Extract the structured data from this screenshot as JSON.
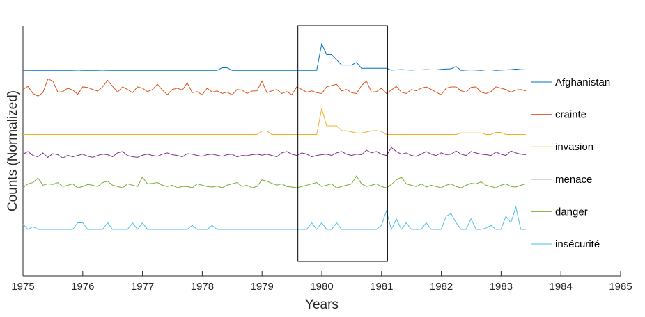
{
  "chart_data": {
    "type": "line",
    "title": "",
    "xlabel": "Years",
    "ylabel": "Counts (Normalized)",
    "xlim": [
      1975,
      1985
    ],
    "xticks": [
      "1975",
      "1976",
      "1977",
      "1978",
      "1979",
      "1980",
      "1981",
      "1982",
      "1983",
      "1984",
      "1985"
    ],
    "yticks_visible": false,
    "grid": false,
    "legend": "right, inline with each series",
    "highlight_box": {
      "x_start": 1979.6,
      "x_end": 1981.1,
      "stroke": "#000000"
    },
    "x_start": 1975.0,
    "x_step": 0.0833,
    "series": [
      {
        "name": "Afghanistan",
        "color": "#0072BD",
        "offset": 0.4,
        "values": [
          0.0,
          0.0,
          0.0,
          0.0,
          0.0,
          0.0,
          0.0,
          0.0,
          0.0,
          0.0,
          0.0,
          0.01,
          0.0,
          0.0,
          0.0,
          0.0,
          0.01,
          0.0,
          0.0,
          0.0,
          0.0,
          0.0,
          0.0,
          0.0,
          0.0,
          0.0,
          0.0,
          0.0,
          0.0,
          0.0,
          0.0,
          0.0,
          0.0,
          0.0,
          0.0,
          0.0,
          0.0,
          0.0,
          0.0,
          0.0,
          0.0,
          0.0,
          0.0,
          0.0,
          0.0,
          0.0,
          0.0,
          0.0,
          0.0,
          0.0,
          0.0,
          0.0,
          0.0,
          0.0,
          0.0,
          0.0,
          0.0,
          0.0,
          0.0,
          0.0,
          0.0,
          0.0,
          0.0,
          0.0,
          0.0,
          0.0,
          0.0,
          0.0,
          0.0,
          0.0,
          0.0,
          0.0,
          0.0,
          0.0,
          0.01,
          0.02,
          0.03,
          0.02,
          0.01,
          0.02,
          0.02,
          0.03,
          0.02,
          0.02,
          0.04,
          0.05,
          0.06,
          0.15,
          0.0,
          0.01,
          0.02,
          0.01,
          0.0,
          0.02,
          0.02,
          0.0,
          0.01,
          0.02,
          0.03,
          0.05,
          0.03,
          0.02,
          0.04,
          0.06,
          0.1,
          0.05,
          0.03,
          0.04,
          0.05,
          0.08,
          0.04,
          0.03,
          0.03,
          0.05,
          0.04,
          0.04,
          0.03,
          0.04,
          0.06,
          0.05,
          0.04,
          0.03,
          0.04,
          0.04,
          0.05,
          0.04,
          0.03,
          0.06,
          0.08,
          0.05,
          0.03,
          0.05,
          0.04,
          0.03,
          0.05,
          0.04,
          0.04,
          0.05,
          0.04,
          0.05,
          0.06,
          0.05,
          0.04,
          0.04,
          0.03,
          0.04,
          0.04,
          0.03,
          0.04,
          0.03,
          0.04,
          0.04
        ]
      },
      {
        "name": "crainte",
        "color": "#D95319",
        "offset": 0.4,
        "values": [
          0.5,
          0.62,
          0.35,
          0.25,
          0.38,
          0.9,
          0.82,
          0.4,
          0.42,
          0.55,
          0.48,
          0.32,
          0.6,
          0.58,
          0.5,
          0.44,
          0.6,
          0.85,
          0.62,
          0.4,
          0.6,
          0.5,
          0.38,
          0.6,
          0.55,
          0.42,
          0.5,
          0.7,
          0.48,
          0.3,
          0.5,
          0.55,
          0.48,
          0.75,
          0.38,
          0.42,
          0.3,
          0.55,
          0.4,
          0.45,
          0.35,
          0.4,
          0.3,
          0.5,
          0.48,
          0.35,
          0.44,
          0.45,
          0.82,
          0.38,
          0.45,
          0.5,
          0.35,
          0.42,
          0.3,
          0.6,
          0.5,
          0.4,
          0.45,
          0.38,
          0.35,
          0.6,
          0.65,
          0.7,
          0.45,
          0.5,
          0.38,
          0.35,
          0.65,
          0.82,
          0.4,
          0.42,
          0.55,
          0.35,
          0.48,
          0.62,
          0.4,
          0.35,
          0.5,
          0.45,
          0.55,
          0.6,
          0.5,
          0.4,
          0.3,
          0.55,
          0.6,
          0.6,
          0.45,
          0.4,
          0.58,
          0.6,
          0.4,
          0.35,
          0.42,
          0.6,
          0.55,
          0.5,
          0.4,
          0.48,
          0.5,
          0.45,
          0.35,
          0.3,
          0.48,
          0.4,
          0.55,
          0.5,
          0.45,
          0.4
        ]
      },
      {
        "name": "invasion",
        "color": "#EDB120",
        "offset": 0.4,
        "values": [
          0.0,
          0.0,
          0.0,
          0.0,
          0.0,
          0.0,
          0.0,
          0.0,
          0.0,
          0.0,
          0.0,
          0.0,
          0.0,
          0.0,
          0.0,
          0.0,
          0.0,
          0.0,
          0.0,
          0.0,
          0.0,
          0.0,
          0.0,
          0.0,
          0.0,
          0.0,
          0.0,
          0.0,
          0.0,
          0.0,
          0.0,
          0.0,
          0.0,
          0.0,
          0.0,
          0.0,
          0.0,
          0.0,
          0.0,
          0.0,
          0.0,
          0.0,
          0.0,
          0.0,
          0.0,
          0.0,
          0.0,
          0.0,
          0.0,
          0.0,
          0.0,
          0.0,
          0.0,
          0.0,
          0.0,
          0.0,
          0.0,
          0.0,
          0.0,
          0.0,
          0.0,
          0.0,
          0.0,
          0.0,
          0.0,
          0.0,
          0.0,
          0.0,
          0.0,
          0.0,
          0.0,
          0.0,
          0.0,
          0.0,
          0.0,
          0.0,
          0.0,
          0.0,
          0.0,
          0.0,
          0.0,
          0.0,
          0.0,
          0.0,
          0.0,
          0.0,
          0.0,
          0.0,
          0.0,
          0.0,
          0.0,
          0.0,
          0.0,
          0.0,
          0.0,
          0.0,
          0.0,
          0.0,
          0.0,
          0.0,
          0.0,
          0.0,
          0.0,
          0.0,
          0.0,
          0.0,
          0.0,
          0.0,
          0.0,
          0.0
        ]
      },
      {
        "name": "menace",
        "color": "#7E2F8E",
        "offset": 0.4,
        "values": [
          0.5,
          0.6,
          0.45,
          0.4,
          0.55,
          0.38,
          0.52,
          0.48,
          0.35,
          0.46,
          0.4,
          0.45,
          0.5,
          0.42,
          0.38,
          0.45,
          0.5,
          0.48,
          0.4,
          0.55,
          0.6,
          0.45,
          0.4,
          0.38,
          0.46,
          0.5,
          0.45,
          0.42,
          0.5,
          0.55,
          0.48,
          0.45,
          0.4,
          0.52,
          0.5,
          0.45,
          0.42,
          0.48,
          0.5,
          0.46,
          0.42,
          0.48,
          0.5,
          0.4,
          0.45,
          0.44,
          0.48,
          0.5,
          0.46,
          0.5,
          0.45,
          0.4,
          0.55,
          0.6,
          0.5,
          0.45,
          0.55,
          0.5,
          0.4,
          0.45,
          0.48,
          0.5,
          0.45,
          0.55,
          0.6,
          0.5,
          0.45,
          0.5,
          0.48,
          0.65,
          0.55,
          0.6,
          0.5,
          0.45,
          0.75,
          0.6,
          0.5,
          0.55,
          0.45,
          0.42,
          0.5,
          0.6,
          0.5,
          0.45,
          0.55,
          0.48,
          0.5,
          0.62,
          0.5,
          0.45,
          0.6,
          0.55,
          0.5,
          0.48,
          0.45,
          0.58,
          0.5,
          0.45,
          0.62,
          0.55,
          0.5,
          0.48,
          0.45,
          0.55,
          0.5,
          0.6,
          0.55,
          0.5,
          0.45,
          0.5
        ]
      },
      {
        "name": "danger",
        "color": "#77AC30",
        "offset": 0.4,
        "values": [
          0.45,
          0.6,
          0.65,
          0.82,
          0.55,
          0.6,
          0.58,
          0.65,
          0.5,
          0.55,
          0.6,
          0.45,
          0.5,
          0.58,
          0.55,
          0.5,
          0.65,
          0.7,
          0.55,
          0.5,
          0.45,
          0.6,
          0.55,
          0.5,
          0.85,
          0.6,
          0.62,
          0.65,
          0.55,
          0.5,
          0.55,
          0.45,
          0.5,
          0.5,
          0.45,
          0.6,
          0.55,
          0.5,
          0.48,
          0.52,
          0.45,
          0.55,
          0.6,
          0.65,
          0.5,
          0.55,
          0.45,
          0.5,
          0.75,
          0.7,
          0.62,
          0.55,
          0.6,
          0.5,
          0.48,
          0.45,
          0.5,
          0.55,
          0.6,
          0.65,
          0.5,
          0.55,
          0.6,
          0.45,
          0.5,
          0.55,
          0.6,
          0.9,
          0.6,
          0.5,
          0.55,
          0.6,
          0.5,
          0.45,
          0.58,
          0.75,
          0.85,
          0.6,
          0.55,
          0.5,
          0.6,
          0.48,
          0.55,
          0.5,
          0.45,
          0.55,
          0.6,
          0.5,
          0.45,
          0.55,
          0.62,
          0.6,
          0.68,
          0.55,
          0.5,
          0.45,
          0.55,
          0.6,
          0.5,
          0.48,
          0.55,
          0.6,
          0.5,
          0.55,
          0.45,
          0.5,
          0.55,
          0.6,
          0.55,
          0.5
        ]
      },
      {
        "name": "insécurité",
        "color": "#4DBEEE",
        "offset": 0.4,
        "values": [
          0.3,
          0.1,
          0.2,
          0.1,
          0.1,
          0.1,
          0.1,
          0.1,
          0.1,
          0.1,
          0.1,
          0.35,
          0.35,
          0.1,
          0.1,
          0.1,
          0.1,
          0.35,
          0.1,
          0.1,
          0.1,
          0.1,
          0.35,
          0.1,
          0.35,
          0.1,
          0.1,
          0.1,
          0.1,
          0.1,
          0.1,
          0.1,
          0.1,
          0.1,
          0.25,
          0.1,
          0.1,
          0.1,
          0.25,
          0.1,
          0.1,
          0.1,
          0.1,
          0.1,
          0.1,
          0.1,
          0.1,
          0.1,
          0.1,
          0.1,
          0.1,
          0.1,
          0.1,
          0.1,
          0.1,
          0.1,
          0.1,
          0.1,
          0.35,
          0.1,
          0.35,
          0.1,
          0.1,
          0.35,
          0.1,
          0.1,
          0.1,
          0.1,
          0.1,
          0.1,
          0.1,
          0.1,
          0.25,
          0.8,
          0.1,
          0.5,
          0.1,
          0.35,
          0.1,
          0.1,
          0.1,
          0.35,
          0.1,
          0.1,
          0.1,
          0.6,
          0.7,
          0.35,
          0.1,
          0.1,
          0.5,
          0.1,
          0.1,
          0.15,
          0.25,
          0.1,
          0.1,
          0.6,
          0.35,
          0.95,
          0.1,
          0.1,
          0.1,
          0.1,
          0.1,
          0.35,
          0.45,
          0.1,
          0.1,
          0.1
        ]
      }
    ]
  }
}
